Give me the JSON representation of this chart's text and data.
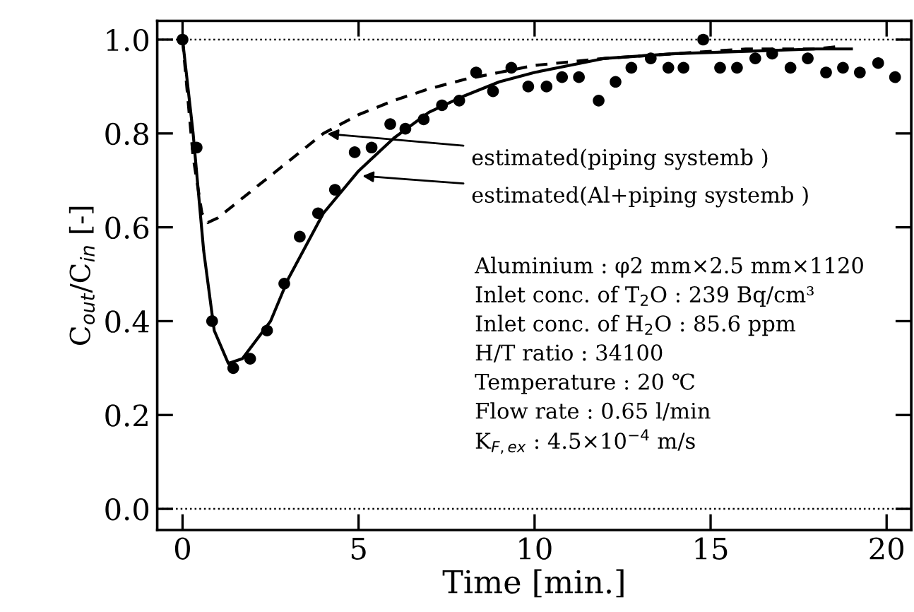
{
  "chart_data": {
    "type": "scatter",
    "xlabel": "Time [min.]",
    "ylabel": "C$_{out}$/C$_{in}$ [-]",
    "xlim": [
      -0.72,
      20.7
    ],
    "ylim": [
      -0.045,
      1.04
    ],
    "xticks": [
      0,
      5,
      10,
      15,
      20
    ],
    "yticks": [
      {
        "value": 0,
        "label": "0.0"
      },
      0.2,
      0.4,
      0.6,
      0.8,
      {
        "value": 1,
        "label": "1.0"
      }
    ],
    "grid": false,
    "legend": false,
    "series": [
      {
        "color": "#000000",
        "marker": "circle",
        "x": [
          0,
          0.4,
          0.84,
          1.44,
          1.92,
          2.4,
          2.89,
          3.33,
          3.85,
          4.33,
          4.89,
          5.37,
          5.9,
          6.33,
          6.85,
          7.37,
          7.86,
          8.34,
          8.82,
          9.34,
          9.82,
          10.34,
          10.78,
          11.26,
          11.82,
          12.3,
          12.75,
          13.3,
          13.8,
          14.23,
          14.79,
          15.27,
          15.75,
          16.27,
          16.75,
          17.27,
          17.76,
          18.28,
          18.76,
          19.24,
          19.76,
          20.24
        ],
        "values": [
          1.0,
          0.77,
          0.4,
          0.3,
          0.32,
          0.38,
          0.48,
          0.58,
          0.63,
          0.68,
          0.76,
          0.77,
          0.82,
          0.81,
          0.83,
          0.86,
          0.87,
          0.93,
          0.89,
          0.94,
          0.9,
          0.9,
          0.92,
          0.92,
          0.87,
          0.91,
          0.94,
          0.96,
          0.94,
          0.94,
          1.0,
          0.94,
          0.94,
          0.96,
          0.97,
          0.94,
          0.96,
          0.93,
          0.94,
          0.93,
          0.95,
          0.92
        ]
      },
      {
        "type": "line",
        "color": "#000000",
        "line_style": "solid",
        "x": [
          0,
          0.3,
          0.6,
          0.9,
          1.3,
          1.7,
          2.5,
          3,
          4,
          5,
          6,
          7,
          8,
          9,
          10,
          12,
          14,
          16,
          18,
          19
        ],
        "values": [
          1.0,
          0.8,
          0.55,
          0.38,
          0.31,
          0.32,
          0.4,
          0.49,
          0.63,
          0.72,
          0.79,
          0.845,
          0.88,
          0.91,
          0.93,
          0.96,
          0.97,
          0.975,
          0.98,
          0.98
        ]
      },
      {
        "type": "line",
        "color": "#000000",
        "line_style": "dashed",
        "x": [
          0,
          0.3,
          0.55,
          0.72,
          1,
          2,
          3,
          4,
          5,
          6,
          7,
          8,
          9,
          10,
          12,
          14,
          16,
          18,
          18.6
        ],
        "values": [
          1.0,
          0.75,
          0.63,
          0.61,
          0.62,
          0.68,
          0.74,
          0.8,
          0.84,
          0.87,
          0.895,
          0.915,
          0.93,
          0.945,
          0.96,
          0.97,
          0.98,
          0.98,
          0.985
        ]
      }
    ],
    "ref_lines": [
      {
        "axis": "y",
        "value": 1.0,
        "color": "#000000",
        "line_style": "dotted"
      },
      {
        "axis": "y",
        "value": 0.0,
        "color": "#000000",
        "line_style": "dotted"
      }
    ],
    "annotations": [
      {
        "text": "estimated(piping systemb )",
        "x": 4.0,
        "y": 0.8
      },
      {
        "text": "estimated(Al+piping systemb )",
        "x": 5.0,
        "y": 0.71
      },
      "Aluminium : φ2 mm×2.5 mm×1120",
      "Inlet conc. of T$_{2}$O : 239 Bq/cm³",
      "Inlet conc. of H$_{2}$O : 85.6 ppm",
      "H/T ratio : 34100",
      "Temperature : 20 ℃",
      "Flow rate : 0.65 l/min",
      "K$_{F,ex}$ : 4.5×10$^{−4}$ m/s"
    ]
  }
}
